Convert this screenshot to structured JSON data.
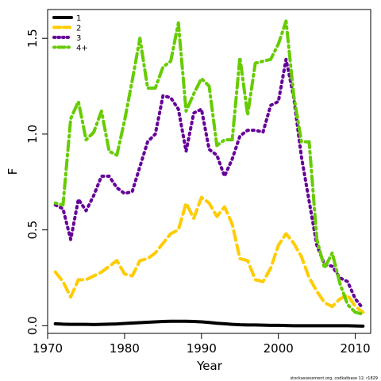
{
  "chart_data": {
    "type": "line",
    "title": "",
    "xlabel": "Year",
    "ylabel": "F",
    "xlim": [
      1970,
      2012
    ],
    "ylim": [
      -0.04,
      1.65
    ],
    "x_ticks": [
      1970,
      1980,
      1990,
      2000,
      2010
    ],
    "y_ticks": [
      0.0,
      0.5,
      1.0,
      1.5
    ],
    "y_tick_labels": [
      "0.0",
      "0.5",
      "1.0",
      "1.5"
    ],
    "grid": false,
    "legend_position": "top-left",
    "x": [
      1971,
      1972,
      1973,
      1974,
      1975,
      1976,
      1977,
      1978,
      1979,
      1980,
      1981,
      1982,
      1983,
      1984,
      1985,
      1986,
      1987,
      1988,
      1989,
      1990,
      1991,
      1992,
      1993,
      1994,
      1995,
      1996,
      1997,
      1998,
      1999,
      2000,
      2001,
      2002,
      2003,
      2004,
      2005,
      2006,
      2007,
      2008,
      2009,
      2010,
      2011
    ],
    "series": [
      {
        "name": "1",
        "color": "#000000",
        "dash": "solid",
        "values": [
          0.01,
          0.008,
          0.007,
          0.007,
          0.007,
          0.006,
          0.007,
          0.008,
          0.009,
          0.012,
          0.014,
          0.016,
          0.018,
          0.02,
          0.022,
          0.023,
          0.023,
          0.023,
          0.022,
          0.02,
          0.017,
          0.013,
          0.01,
          0.007,
          0.005,
          0.004,
          0.004,
          0.003,
          0.002,
          0.002,
          0.001,
          0.0,
          0.0,
          0.0,
          0.0,
          0.0,
          0.0,
          0.0,
          0.0,
          -0.001,
          -0.002
        ]
      },
      {
        "name": "2",
        "color": "#ffcc00",
        "dash": "dashed",
        "values": [
          0.28,
          0.23,
          0.15,
          0.24,
          0.24,
          0.26,
          0.28,
          0.31,
          0.34,
          0.27,
          0.26,
          0.34,
          0.35,
          0.38,
          0.43,
          0.48,
          0.5,
          0.64,
          0.56,
          0.67,
          0.64,
          0.57,
          0.62,
          0.53,
          0.35,
          0.34,
          0.24,
          0.23,
          0.3,
          0.42,
          0.48,
          0.43,
          0.36,
          0.25,
          0.18,
          0.12,
          0.1,
          0.14,
          0.16,
          0.1,
          0.07
        ]
      },
      {
        "name": "3",
        "color": "#660099",
        "dash": "dotted",
        "values": [
          0.63,
          0.61,
          0.45,
          0.66,
          0.6,
          0.68,
          0.78,
          0.78,
          0.72,
          0.69,
          0.7,
          0.83,
          0.96,
          1.0,
          1.2,
          1.19,
          1.13,
          0.91,
          1.11,
          1.13,
          0.92,
          0.89,
          0.78,
          0.87,
          0.99,
          1.02,
          1.02,
          1.01,
          1.15,
          1.17,
          1.39,
          1.19,
          0.88,
          0.65,
          0.42,
          0.32,
          0.31,
          0.25,
          0.23,
          0.14,
          0.09
        ]
      },
      {
        "name": "4+",
        "color": "#66cc00",
        "dash": "dotdash",
        "values": [
          0.64,
          0.63,
          1.08,
          1.17,
          0.97,
          1.01,
          1.12,
          0.91,
          0.89,
          1.07,
          1.28,
          1.5,
          1.24,
          1.24,
          1.35,
          1.38,
          1.58,
          1.12,
          1.21,
          1.29,
          1.25,
          0.94,
          0.97,
          0.97,
          1.4,
          1.1,
          1.37,
          1.38,
          1.39,
          1.47,
          1.59,
          1.2,
          0.96,
          0.96,
          0.45,
          0.3,
          0.38,
          0.22,
          0.11,
          0.07,
          0.06
        ]
      }
    ]
  },
  "credit": "stockassessment.org, codkatbase 12, r1829"
}
